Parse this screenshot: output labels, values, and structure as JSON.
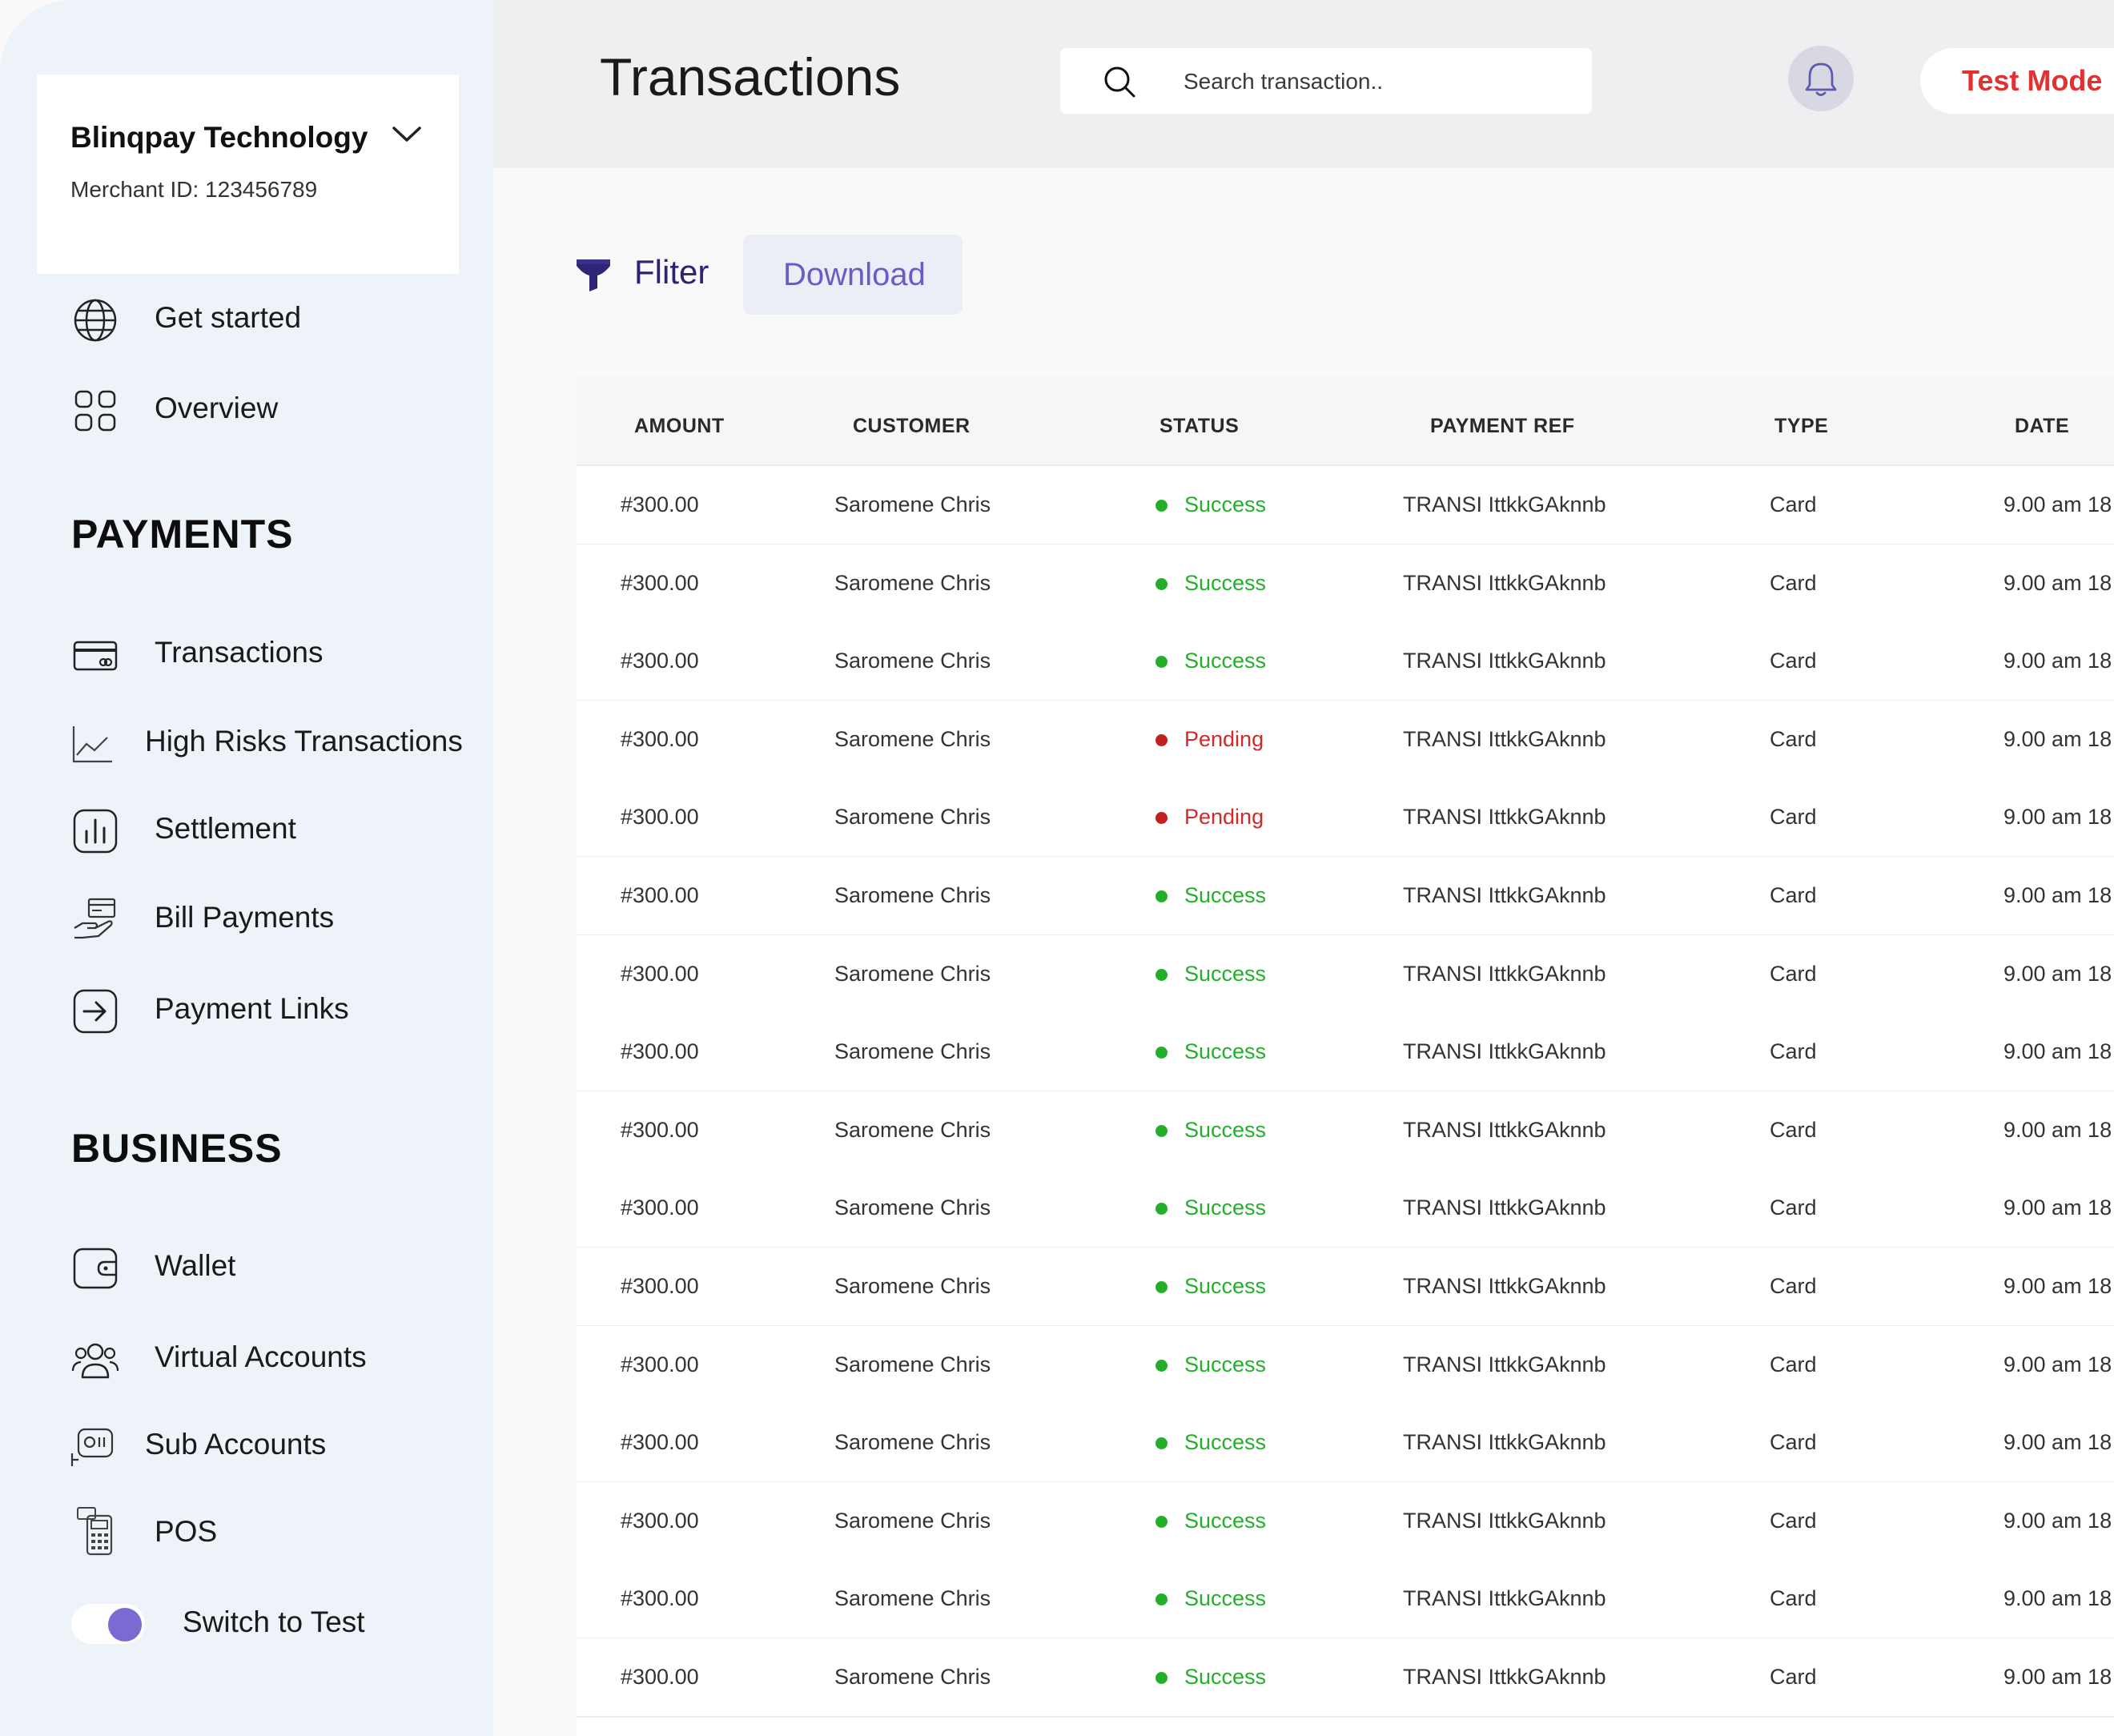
{
  "merchant": {
    "name": "Blinqpay Technology",
    "id_label": "Merchant ID: 123456789"
  },
  "nav": {
    "top": [
      {
        "label": "Get started",
        "icon": "globe-icon"
      },
      {
        "label": "Overview",
        "icon": "grid-icon"
      }
    ],
    "payments_title": "PAYMENTS",
    "payments": [
      {
        "label": "Transactions",
        "icon": "card-icon"
      },
      {
        "label": "High Risks Transactions",
        "icon": "line-chart-icon"
      },
      {
        "label": "Settlement",
        "icon": "bar-chart-icon"
      },
      {
        "label": "Bill Payments",
        "icon": "hand-card-icon"
      },
      {
        "label": "Payment Links",
        "icon": "arrow-right-box-icon"
      }
    ],
    "business_title": "BUSINESS",
    "business": [
      {
        "label": "Wallet",
        "icon": "wallet-icon"
      },
      {
        "label": "Virtual Accounts",
        "icon": "users-icon"
      },
      {
        "label": "Sub Accounts",
        "icon": "sub-accounts-icon"
      },
      {
        "label": "POS",
        "icon": "pos-icon"
      }
    ],
    "switch_label": "Switch to Test"
  },
  "header": {
    "title": "Transactions",
    "search_placeholder": "Search transaction..",
    "test_mode_label": "Test Mode"
  },
  "actions": {
    "filter_label": "Fliter",
    "download_label": "Download"
  },
  "table": {
    "columns": [
      "AMOUNT",
      "CUSTOMER",
      "STATUS",
      "PAYMENT REF",
      "TYPE",
      "DATE"
    ],
    "rows": [
      {
        "amount": "#300.00",
        "customer": "Saromene Chris",
        "status": "Success",
        "ref": "TRANSI IttkkGAknnb",
        "type": "Card",
        "date": "9.00 am 18"
      },
      {
        "amount": "#300.00",
        "customer": "Saromene Chris",
        "status": "Success",
        "ref": "TRANSI IttkkGAknnb",
        "type": "Card",
        "date": "9.00 am 18"
      },
      {
        "amount": "#300.00",
        "customer": "Saromene Chris",
        "status": "Success",
        "ref": "TRANSI IttkkGAknnb",
        "type": "Card",
        "date": "9.00 am 18"
      },
      {
        "amount": "#300.00",
        "customer": "Saromene Chris",
        "status": "Pending",
        "ref": "TRANSI IttkkGAknnb",
        "type": "Card",
        "date": "9.00 am 18"
      },
      {
        "amount": "#300.00",
        "customer": "Saromene Chris",
        "status": "Pending",
        "ref": "TRANSI IttkkGAknnb",
        "type": "Card",
        "date": "9.00 am 18"
      },
      {
        "amount": "#300.00",
        "customer": "Saromene Chris",
        "status": "Success",
        "ref": "TRANSI IttkkGAknnb",
        "type": "Card",
        "date": "9.00 am 18"
      },
      {
        "amount": "#300.00",
        "customer": "Saromene Chris",
        "status": "Success",
        "ref": "TRANSI IttkkGAknnb",
        "type": "Card",
        "date": "9.00 am 18"
      },
      {
        "amount": "#300.00",
        "customer": "Saromene Chris",
        "status": "Success",
        "ref": "TRANSI IttkkGAknnb",
        "type": "Card",
        "date": "9.00 am 18"
      },
      {
        "amount": "#300.00",
        "customer": "Saromene Chris",
        "status": "Success",
        "ref": "TRANSI IttkkGAknnb",
        "type": "Card",
        "date": "9.00 am 18"
      },
      {
        "amount": "#300.00",
        "customer": "Saromene Chris",
        "status": "Success",
        "ref": "TRANSI IttkkGAknnb",
        "type": "Card",
        "date": "9.00 am 18"
      },
      {
        "amount": "#300.00",
        "customer": "Saromene Chris",
        "status": "Success",
        "ref": "TRANSI IttkkGAknnb",
        "type": "Card",
        "date": "9.00 am 18"
      },
      {
        "amount": "#300.00",
        "customer": "Saromene Chris",
        "status": "Success",
        "ref": "TRANSI IttkkGAknnb",
        "type": "Card",
        "date": "9.00 am 18"
      },
      {
        "amount": "#300.00",
        "customer": "Saromene Chris",
        "status": "Success",
        "ref": "TRANSI IttkkGAknnb",
        "type": "Card",
        "date": "9.00 am 18"
      },
      {
        "amount": "#300.00",
        "customer": "Saromene Chris",
        "status": "Success",
        "ref": "TRANSI IttkkGAknnb",
        "type": "Card",
        "date": "9.00 am 18"
      },
      {
        "amount": "#300.00",
        "customer": "Saromene Chris",
        "status": "Success",
        "ref": "TRANSI IttkkGAknnb",
        "type": "Card",
        "date": "9.00 am 18"
      },
      {
        "amount": "#300.00",
        "customer": "Saromene Chris",
        "status": "Success",
        "ref": "TRANSI IttkkGAknnb",
        "type": "Card",
        "date": "9.00 am 18"
      }
    ]
  },
  "colors": {
    "accent": "#7b6ad2",
    "success": "#22b02a",
    "pending": "#d02a2a",
    "test_mode": "#e23131",
    "sidebar_bg": "#eef2f9"
  }
}
